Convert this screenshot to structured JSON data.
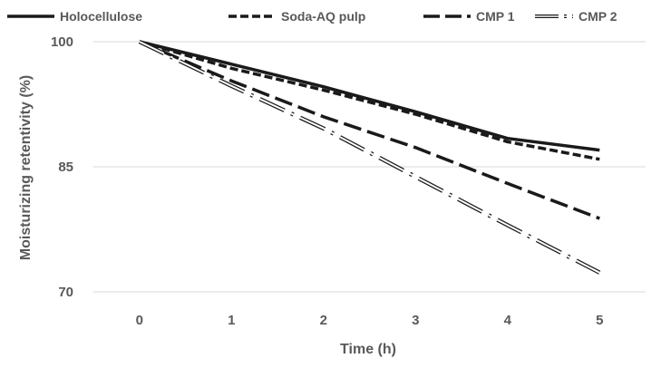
{
  "chart_data": {
    "type": "line",
    "title": "",
    "xlabel": "Time (h)",
    "ylabel": "Moisturizing retentivity (%)",
    "x": [
      0,
      1,
      2,
      3,
      4,
      5
    ],
    "xticks": [
      "0",
      "1",
      "2",
      "3",
      "4",
      "5"
    ],
    "yticks": [
      "70",
      "85",
      "100"
    ],
    "ylim": [
      70,
      100
    ],
    "xlim": [
      -0.5,
      5.5
    ],
    "grid": true,
    "legend_position": "top",
    "series": [
      {
        "name": "Holocellulose",
        "style": "solid",
        "values": [
          100,
          97.3,
          94.6,
          91.6,
          88.4,
          87.0
        ]
      },
      {
        "name": "Soda-AQ pulp",
        "style": "dashed",
        "values": [
          100,
          96.8,
          94.2,
          91.3,
          88.0,
          85.9
        ]
      },
      {
        "name": "CMP 1",
        "style": "long-dash",
        "values": [
          100,
          95.3,
          91.0,
          87.3,
          83.0,
          78.8
        ]
      },
      {
        "name": "CMP 2",
        "style": "dash-dot-hollow",
        "values": [
          100,
          94.7,
          89.6,
          83.8,
          78.0,
          72.3
        ]
      }
    ]
  },
  "legend": {
    "items": [
      {
        "label": "Holocellulose"
      },
      {
        "label": "Soda-AQ pulp"
      },
      {
        "label": "CMP 1"
      },
      {
        "label": "CMP 2"
      }
    ]
  }
}
